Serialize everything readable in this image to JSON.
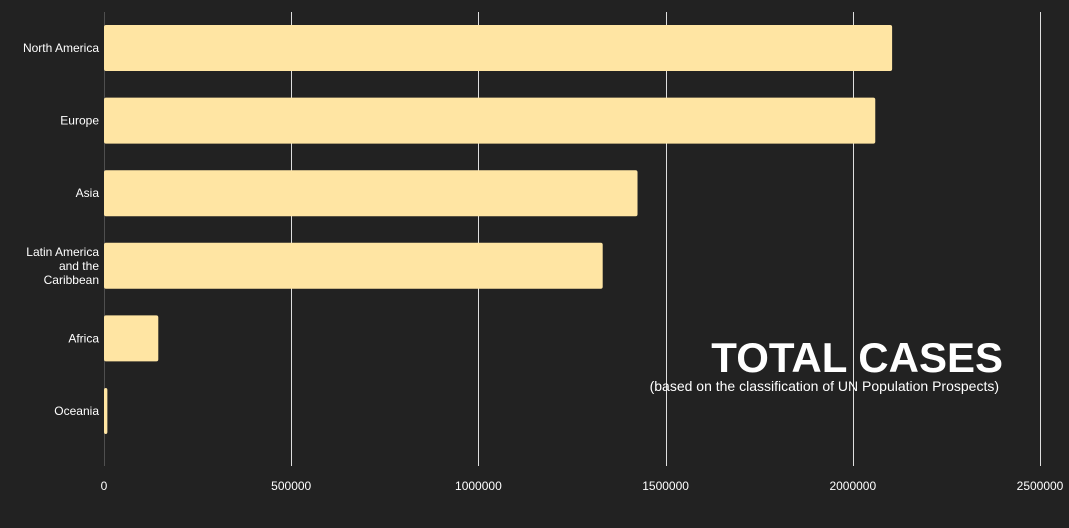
{
  "colors": {
    "background": "#222222",
    "bar": "#ffe5a3",
    "grid": "#ffffff",
    "text": "#ffffff"
  },
  "chart_data": {
    "type": "bar",
    "orientation": "horizontal",
    "title": "TOTAL CASES",
    "subtitle": "(based on the classification of UN Population Prospects)",
    "categories": [
      "North America",
      "Europe",
      "Asia",
      "Latin America and the Caribbean",
      "Africa",
      "Oceania"
    ],
    "category_label_lines": [
      [
        "North America"
      ],
      [
        "Europe"
      ],
      [
        "Asia"
      ],
      [
        "Latin America",
        "and the",
        "Caribbean"
      ],
      [
        "Africa"
      ],
      [
        "Oceania"
      ]
    ],
    "values": [
      2105000,
      2060000,
      1425000,
      1332000,
      145000,
      9000
    ],
    "xlim": [
      0,
      2500000
    ],
    "x_ticks": [
      0,
      500000,
      1000000,
      1500000,
      2000000,
      2500000
    ],
    "x_tick_labels": [
      "0",
      "500000",
      "1000000",
      "1500000",
      "2000000",
      "2500000"
    ],
    "xlabel": "",
    "ylabel": "",
    "grid": true,
    "legend": false
  }
}
